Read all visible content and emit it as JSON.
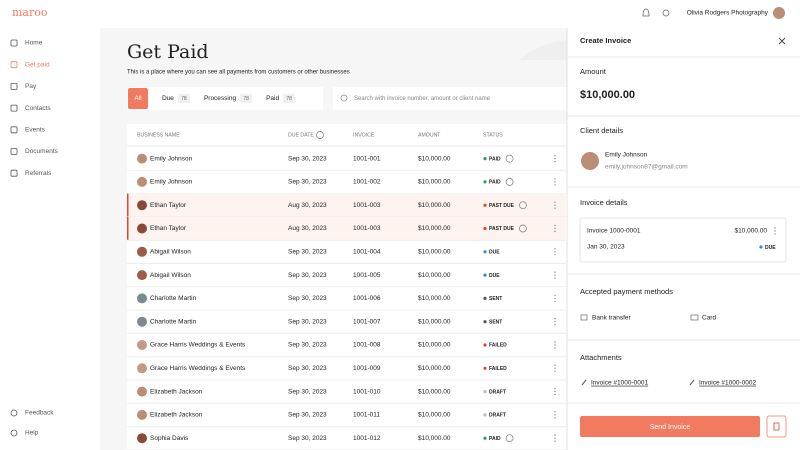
{
  "brand": "maroo",
  "topbar": {
    "user": "Olivia Rodgers Photography"
  },
  "nav": {
    "items": [
      "Home",
      "Get paid",
      "Pay",
      "Contacts",
      "Events",
      "Documents",
      "Referrals"
    ],
    "active": 1,
    "footer": [
      "Feedback",
      "Help"
    ]
  },
  "page": {
    "title": "Get Paid",
    "subtitle": "This is a place where you can see all payments from customers or other businesses"
  },
  "tabs": [
    {
      "label": "All"
    },
    {
      "label": "Due",
      "count": 78
    },
    {
      "label": "Processing",
      "count": 78
    },
    {
      "label": "Paid",
      "count": 78
    }
  ],
  "search": {
    "placeholder": "Search with invoice number, amount or client name"
  },
  "table": {
    "headers": [
      "BUSINESS NAME",
      "DUE DATE",
      "INVOICE",
      "AMOUNT",
      "STATUS"
    ],
    "rows": [
      {
        "business": "Emily Johnson",
        "due_date": "Sep 30, 2023",
        "invoice": "1001-001",
        "amount": "$10,000.00",
        "status": "PAID",
        "status_color": "#22a55b",
        "info": true
      },
      {
        "business": "Emily Johnson",
        "due_date": "Sep 30, 2023",
        "invoice": "1001-002",
        "amount": "$10,000.00",
        "status": "PAID",
        "status_color": "#22a55b",
        "info": true
      },
      {
        "business": "Ethan Taylor",
        "due_date": "Aug 30, 2023",
        "invoice": "1001-003",
        "amount": "$10,000.00",
        "status": "PAST DUE",
        "status_color": "#e0452f",
        "info": true,
        "highlighted": true
      },
      {
        "business": "Ethan Taylor",
        "due_date": "Aug 30, 2023",
        "invoice": "1001-003",
        "amount": "$10,000.00",
        "status": "PAST DUE",
        "status_color": "#e0452f",
        "info": true,
        "highlighted": true
      },
      {
        "business": "Abigail Wilson",
        "due_date": "Sep 30, 2023",
        "invoice": "1001-004",
        "amount": "$10,000.00",
        "status": "DUE",
        "status_color": "#3b82f6"
      },
      {
        "business": "Abigail Wilson",
        "due_date": "Sep 30, 2023",
        "invoice": "1001-005",
        "amount": "$10,000.00",
        "status": "DUE",
        "status_color": "#3b82f6"
      },
      {
        "business": "Charlotte Martin",
        "due_date": "Sep 30, 2023",
        "invoice": "1001-006",
        "amount": "$10,000.00",
        "status": "SENT",
        "status_color": "#555555"
      },
      {
        "business": "Charlotte Martin",
        "due_date": "Sep 30, 2023",
        "invoice": "1001-007",
        "amount": "$10,000.00",
        "status": "SENT",
        "status_color": "#555555"
      },
      {
        "business": "Grace Harris Weddings & Events",
        "due_date": "Sep 30, 2023",
        "invoice": "1001-008",
        "amount": "$10,000.00",
        "status": "FAILED",
        "status_color": "#e0452f"
      },
      {
        "business": "Grace Harris Weddings & Events",
        "due_date": "Sep 30, 2023",
        "invoice": "1001-009",
        "amount": "$10,000.00",
        "status": "FAILED",
        "status_color": "#e0452f"
      },
      {
        "business": "Elizabeth Jackson",
        "due_date": "Sep 30, 2023",
        "invoice": "1001-010",
        "amount": "$10,000.00",
        "status": "DRAFT",
        "status_color": "#bbbbbb"
      },
      {
        "business": "Elizabeth Jackson",
        "due_date": "Sep 30, 2023",
        "invoice": "1001-011",
        "amount": "$10,000.00",
        "status": "DRAFT",
        "status_color": "#bbbbbb"
      },
      {
        "business": "Sophia Davis",
        "due_date": "Sep 30, 2023",
        "invoice": "1001-012",
        "amount": "$10,000.00",
        "status": "PAID",
        "status_color": "#22a55b",
        "info": true
      }
    ]
  },
  "panel": {
    "title": "Create Invoice",
    "amount_label": "Amount",
    "amount": "$10,000.00",
    "client_heading": "Client details",
    "client_name": "Emily Johnson",
    "client_email": "emily.johnson87@gmail.com",
    "invoice_heading": "Invoice details",
    "invoice_name": "Invoice 1000-0001",
    "invoice_amount": "$10,000.00",
    "invoice_date": "Jan 30, 2023",
    "invoice_status": "DUE",
    "methods_heading": "Accepted payment methods",
    "methods": [
      "Bank transfer",
      "Card"
    ],
    "attachments_heading": "Attachments",
    "attachments": [
      "Invoice #1000-0001",
      "Invoice #1000-0002"
    ],
    "button": "Send Invoice"
  }
}
